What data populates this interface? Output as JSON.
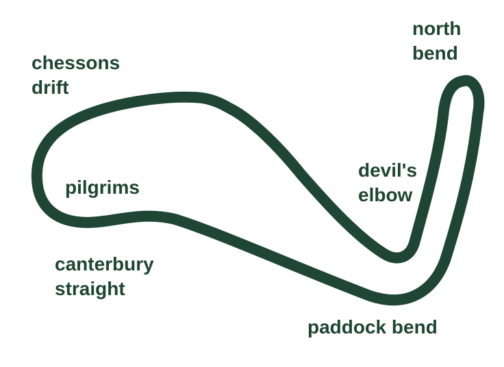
{
  "colors": {
    "track": "#1f4535",
    "label": "#1f4535",
    "background": "#ffffff"
  },
  "track": {
    "name_icon": "circuit-outline"
  },
  "labels": {
    "chessons_drift": {
      "line1": "chessons",
      "line2": "drift"
    },
    "north_bend": {
      "line1": "north",
      "line2": "bend"
    },
    "pilgrims": {
      "line1": "pilgrims"
    },
    "devils_elbow": {
      "line1": "devil's",
      "line2": "elbow"
    },
    "canterbury_straight": {
      "line1": "canterbury",
      "line2": "straight"
    },
    "paddock_bend": {
      "line1": "paddock bend"
    }
  }
}
